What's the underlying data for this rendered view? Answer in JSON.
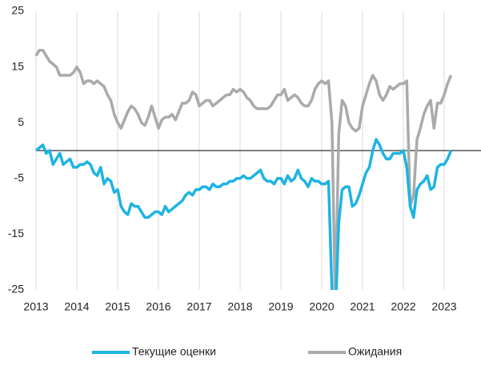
{
  "chart_data": {
    "type": "line",
    "categories": [
      "2013",
      null,
      null,
      null,
      null,
      null,
      null,
      null,
      null,
      null,
      null,
      null,
      "2014",
      null,
      null,
      null,
      null,
      null,
      null,
      null,
      null,
      null,
      null,
      null,
      "2015",
      null,
      null,
      null,
      null,
      null,
      null,
      null,
      null,
      null,
      null,
      null,
      "2016",
      null,
      null,
      null,
      null,
      null,
      null,
      null,
      null,
      null,
      null,
      null,
      "2017",
      null,
      null,
      null,
      null,
      null,
      null,
      null,
      null,
      null,
      null,
      null,
      "2018",
      null,
      null,
      null,
      null,
      null,
      null,
      null,
      null,
      null,
      null,
      null,
      "2019",
      null,
      null,
      null,
      null,
      null,
      null,
      null,
      null,
      null,
      null,
      null,
      "2020",
      null,
      null,
      null,
      null,
      null,
      null,
      null,
      null,
      null,
      null,
      null,
      "2021",
      null,
      null,
      null,
      null,
      null,
      null,
      null,
      null,
      null,
      null,
      null,
      "2022",
      null,
      null,
      null,
      null,
      null,
      null,
      null,
      null,
      null,
      null,
      null,
      "2023",
      null,
      null
    ],
    "series": [
      {
        "name": "Текущие оценки",
        "color": "#1db4e3",
        "values": [
          0,
          0.5,
          1,
          -0.5,
          0,
          -2.5,
          -1.5,
          -0.5,
          -2.5,
          -2,
          -1.5,
          -3,
          -3,
          -2.5,
          -2.5,
          -2,
          -2.5,
          -4,
          -4.5,
          -3,
          -6,
          -5,
          -5.5,
          -7.5,
          -7,
          -10,
          -11,
          -11.5,
          -9.5,
          -10,
          -10,
          -11,
          -12,
          -12,
          -11.5,
          -11,
          -11,
          -11.5,
          -10,
          -11,
          -10.5,
          -10,
          -9.5,
          -9,
          -8,
          -7.5,
          -8,
          -7,
          -7,
          -6.5,
          -6.5,
          -7,
          -6,
          -6.5,
          -6.5,
          -6,
          -6,
          -5.5,
          -5.5,
          -5,
          -5,
          -4.5,
          -5,
          -5,
          -4.5,
          -4,
          -3.5,
          -5,
          -5.5,
          -5.5,
          -6,
          -5,
          -5,
          -6,
          -4.5,
          -5.5,
          -5,
          -3.5,
          -5,
          -5.5,
          -6.5,
          -5,
          -5.5,
          -5.5,
          -6,
          -6,
          -5.5,
          -25,
          -30,
          -13,
          -7,
          -6.5,
          -6.5,
          -10,
          -9.5,
          -8,
          -6,
          -4,
          -3,
          0,
          2,
          1,
          -0.5,
          -1.5,
          -1.5,
          -0.5,
          -0.5,
          -0.5,
          0,
          -3,
          -10,
          -12,
          -7,
          -6,
          -5.5,
          -4.5,
          -7,
          -6.5,
          -3,
          -2.5,
          -2.5,
          -1.5,
          0
        ]
      },
      {
        "name": "Ожидания",
        "color": "#aaaaaa",
        "values": [
          17,
          18,
          18,
          17,
          16,
          15.5,
          15,
          13.5,
          13.5,
          13.5,
          13.5,
          14,
          15,
          14,
          12,
          12.5,
          12.5,
          12,
          12.5,
          12,
          11.5,
          10,
          9,
          6.5,
          5,
          4,
          5.5,
          7,
          8,
          7.5,
          6.5,
          5,
          4.5,
          6,
          8,
          6,
          4,
          5.5,
          6,
          6,
          6.5,
          5.5,
          7,
          8.5,
          8.5,
          9,
          10.5,
          10,
          8,
          8.5,
          9,
          9,
          8,
          8.5,
          9,
          9.5,
          10,
          10,
          11,
          10.5,
          11,
          10.5,
          9.5,
          9,
          8,
          7.5,
          7.5,
          7.5,
          7.5,
          8,
          9,
          10,
          10,
          11,
          9,
          9.5,
          10,
          9.5,
          8.5,
          8,
          8,
          9,
          11,
          12,
          12.5,
          12,
          12.5,
          5,
          -28,
          3,
          9,
          8,
          5,
          4,
          3.5,
          4,
          8,
          10,
          12,
          13.5,
          12.5,
          10,
          9,
          10,
          11.5,
          11,
          11.5,
          12,
          12,
          12.5,
          -10,
          -8,
          2,
          4,
          6.5,
          8,
          9,
          4,
          8.5,
          8.5,
          10,
          12,
          13.5
        ]
      }
    ],
    "ylim": [
      -25,
      25
    ],
    "yticks": [
      25,
      15,
      5,
      -5,
      -15,
      -25
    ],
    "grid": true,
    "legend": "bottom"
  }
}
